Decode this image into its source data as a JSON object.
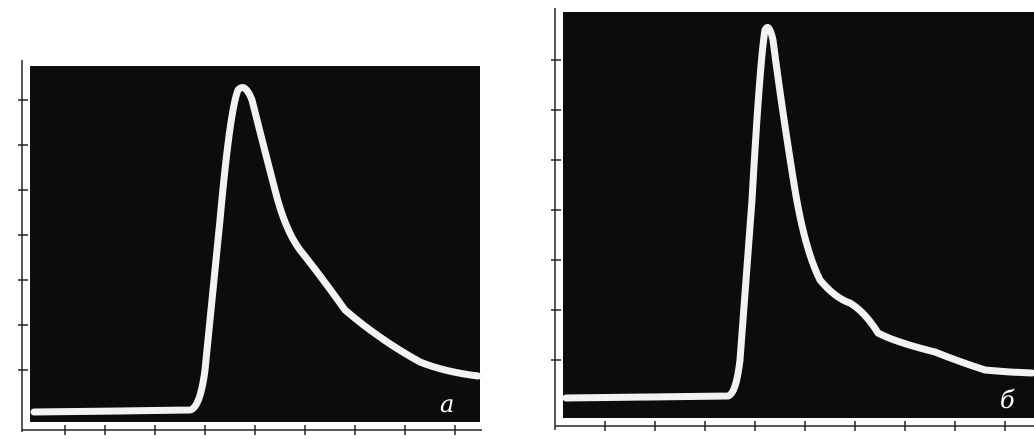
{
  "panels": [
    {
      "label": "a"
    },
    {
      "label": "б"
    }
  ]
}
